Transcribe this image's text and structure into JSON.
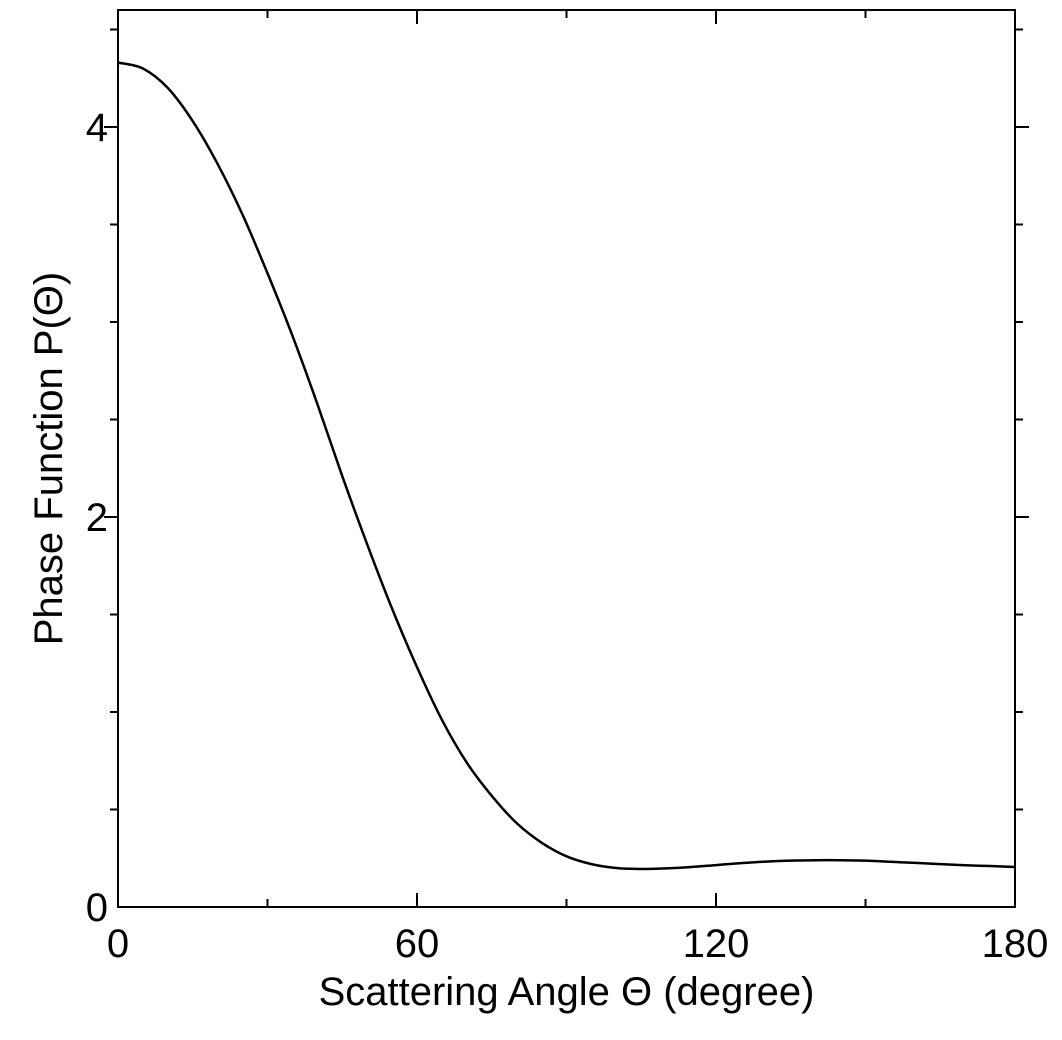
{
  "chart_data": {
    "type": "line",
    "title": "",
    "xlabel": "Scattering Angle Θ (degree)",
    "ylabel": "Phase Function P(Θ)",
    "xlim": [
      0,
      180
    ],
    "ylim": [
      0,
      4.6
    ],
    "x_ticks": [
      {
        "value": 0,
        "label": "0"
      },
      {
        "value": 60,
        "label": "60"
      },
      {
        "value": 120,
        "label": "120"
      },
      {
        "value": 180,
        "label": "180"
      }
    ],
    "x_minor_ticks": [
      30,
      90,
      150
    ],
    "y_ticks": [
      {
        "value": 0,
        "label": "0"
      },
      {
        "value": 2,
        "label": "2"
      },
      {
        "value": 4,
        "label": "4"
      }
    ],
    "y_minor_ticks": [
      1,
      3
    ],
    "grid": false,
    "line_color": "#000000",
    "series": [
      {
        "name": "",
        "x": [
          0,
          5,
          10,
          15,
          20,
          25,
          30,
          35,
          40,
          45,
          50,
          55,
          60,
          65,
          70,
          75,
          80,
          85,
          90,
          95,
          100,
          105,
          110,
          115,
          120,
          125,
          130,
          135,
          140,
          145,
          150,
          155,
          160,
          165,
          170,
          175,
          180
        ],
        "y": [
          4.33,
          4.3,
          4.2,
          4.03,
          3.81,
          3.55,
          3.25,
          2.93,
          2.58,
          2.21,
          1.86,
          1.53,
          1.23,
          0.96,
          0.74,
          0.57,
          0.43,
          0.33,
          0.26,
          0.22,
          0.2,
          0.195,
          0.198,
          0.205,
          0.215,
          0.225,
          0.233,
          0.238,
          0.24,
          0.24,
          0.238,
          0.232,
          0.226,
          0.22,
          0.214,
          0.21,
          0.205
        ]
      }
    ]
  }
}
